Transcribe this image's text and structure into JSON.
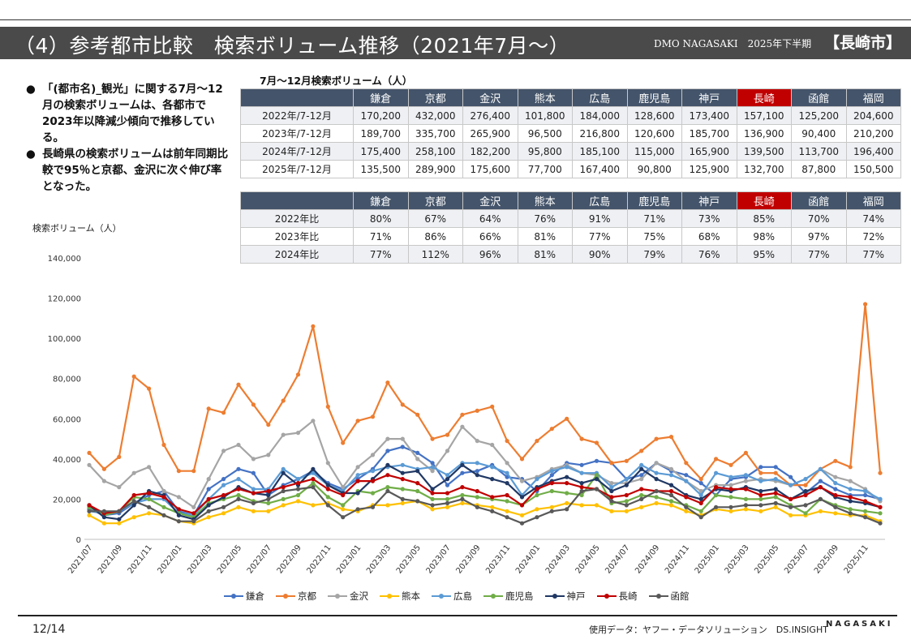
{
  "header": {
    "title": "（4）参考都市比較　検索ボリューム推移（2021年7月～）",
    "subtitle": "DMO NAGASAKI　2025年下半期",
    "city": "【長崎市】"
  },
  "bullets": [
    "「(都市名)_観光」に関する7月～12月の検索ボリュームは、各都市で2023年以降減少傾向で推移している。",
    "長崎県の検索ボリュームは前年同期比較で95％と京都、金沢に次ぐ伸び率となった。"
  ],
  "bullet_marker": "●",
  "volume_table": {
    "caption": "7月～12月検索ボリューム（人）",
    "columns": [
      "鎌倉",
      "京都",
      "金沢",
      "熊本",
      "広島",
      "鹿児島",
      "神戸",
      "長崎",
      "函館",
      "福岡"
    ],
    "highlight": "長崎",
    "rows": [
      {
        "label": "2022年/7-12月",
        "values": [
          "170,200",
          "432,000",
          "276,400",
          "101,800",
          "184,000",
          "128,600",
          "173,400",
          "157,100",
          "125,200",
          "204,600"
        ]
      },
      {
        "label": "2023年/7-12月",
        "values": [
          "189,700",
          "335,700",
          "265,900",
          "96,500",
          "216,800",
          "120,600",
          "185,700",
          "136,900",
          "90,400",
          "210,200"
        ]
      },
      {
        "label": "2024年/7-12月",
        "values": [
          "175,400",
          "258,100",
          "182,200",
          "95,800",
          "185,100",
          "115,000",
          "165,900",
          "139,500",
          "113,700",
          "196,400"
        ]
      },
      {
        "label": "2025年/7-12月",
        "values": [
          "135,500",
          "289,900",
          "175,600",
          "77,700",
          "167,400",
          "90,800",
          "125,900",
          "132,700",
          "87,800",
          "150,500"
        ]
      }
    ]
  },
  "ratio_table": {
    "columns": [
      "鎌倉",
      "京都",
      "金沢",
      "熊本",
      "広島",
      "鹿児島",
      "神戸",
      "長崎",
      "函館",
      "福岡"
    ],
    "highlight": "長崎",
    "rows": [
      {
        "label": "2022年比",
        "values": [
          "80%",
          "67%",
          "64%",
          "76%",
          "91%",
          "71%",
          "73%",
          "85%",
          "70%",
          "74%"
        ]
      },
      {
        "label": "2023年比",
        "values": [
          "71%",
          "86%",
          "66%",
          "81%",
          "77%",
          "75%",
          "68%",
          "98%",
          "97%",
          "72%"
        ]
      },
      {
        "label": "2024年比",
        "values": [
          "77%",
          "112%",
          "96%",
          "81%",
          "90%",
          "79%",
          "76%",
          "95%",
          "77%",
          "77%"
        ]
      }
    ]
  },
  "chart_data": {
    "type": "line",
    "title": "",
    "xlabel": "",
    "ylabel": "検索ボリューム（人）",
    "ylim": [
      0,
      140000
    ],
    "yticks": [
      "0",
      "20,000",
      "40,000",
      "60,000",
      "80,000",
      "100,000",
      "120,000",
      "140,000"
    ],
    "legend_position": "bottom",
    "grid": false,
    "categories": [
      "2021/07",
      "2021/08",
      "2021/09",
      "2021/10",
      "2021/11",
      "2021/12",
      "2022/01",
      "2022/02",
      "2022/03",
      "2022/04",
      "2022/05",
      "2022/06",
      "2022/07",
      "2022/08",
      "2022/09",
      "2022/10",
      "2022/11",
      "2022/12",
      "2023/01",
      "2023/02",
      "2023/03",
      "2023/04",
      "2023/05",
      "2023/06",
      "2023/07",
      "2023/08",
      "2023/09",
      "2023/10",
      "2023/11",
      "2023/12",
      "2024/01",
      "2024/02",
      "2024/03",
      "2024/04",
      "2024/05",
      "2024/06",
      "2024/07",
      "2024/08",
      "2024/09",
      "2024/10",
      "2024/11",
      "2024/12",
      "2025/01",
      "2025/02",
      "2025/03",
      "2025/04",
      "2025/05",
      "2025/06",
      "2025/07",
      "2025/08",
      "2025/09",
      "2025/10",
      "2025/11",
      "2025/12"
    ],
    "x_tick_labels": [
      "2021/07",
      "2021/09",
      "2021/11",
      "2022/01",
      "2022/03",
      "2022/05",
      "2022/07",
      "2022/09",
      "2022/11",
      "2023/01",
      "2023/03",
      "2023/05",
      "2023/07",
      "2023/09",
      "2023/11",
      "2024/01",
      "2024/03",
      "2024/05",
      "2024/07",
      "2024/09",
      "2024/11",
      "2025/01",
      "2025/03",
      "2025/05",
      "2025/07",
      "2025/09",
      "2025/11"
    ],
    "series": [
      {
        "name": "鎌倉",
        "color": "#4472c4",
        "values": [
          15000,
          12000,
          13000,
          18000,
          22000,
          24000,
          14000,
          12000,
          25000,
          30000,
          35000,
          33000,
          22000,
          27000,
          30000,
          34000,
          28000,
          25000,
          30000,
          35000,
          44000,
          46000,
          43000,
          38000,
          27000,
          33000,
          34000,
          37000,
          31000,
          30000,
          24000,
          32000,
          38000,
          37000,
          39000,
          38000,
          30000,
          32000,
          38000,
          34000,
          32000,
          28000,
          22000,
          30000,
          31000,
          36000,
          36000,
          31000,
          23000,
          29000,
          25000,
          22000,
          22000,
          20000
        ]
      },
      {
        "name": "京都",
        "color": "#ed7d31",
        "values": [
          43000,
          35000,
          41000,
          81000,
          75000,
          47000,
          34000,
          34000,
          65000,
          63000,
          77000,
          67000,
          57000,
          69000,
          82000,
          106000,
          66000,
          48000,
          59000,
          61000,
          78000,
          67000,
          62000,
          50000,
          52000,
          62000,
          64000,
          66000,
          49000,
          40000,
          49000,
          55000,
          60000,
          50000,
          48000,
          38000,
          39000,
          44000,
          50000,
          51000,
          38000,
          30000,
          40000,
          37000,
          43000,
          33000,
          33000,
          27000,
          27000,
          35000,
          39000,
          36000,
          117000,
          33000
        ]
      },
      {
        "name": "金沢",
        "color": "#a5a5a5",
        "values": [
          37000,
          29000,
          26000,
          33000,
          36000,
          24000,
          21000,
          16000,
          30000,
          44000,
          47000,
          40000,
          42000,
          52000,
          53000,
          59000,
          38000,
          26000,
          36000,
          42000,
          50000,
          50000,
          40000,
          34000,
          44000,
          56000,
          49000,
          47000,
          38000,
          29000,
          31000,
          35000,
          37000,
          33000,
          32000,
          28000,
          28000,
          30000,
          38000,
          35000,
          29000,
          24000,
          27000,
          27000,
          29000,
          30000,
          29000,
          27000,
          30000,
          35000,
          31000,
          29000,
          25000,
          19000
        ]
      },
      {
        "name": "熊本",
        "color": "#ffc000",
        "values": [
          12000,
          8000,
          8000,
          11000,
          13000,
          12000,
          9000,
          8000,
          11000,
          13000,
          16000,
          14000,
          14000,
          17000,
          19000,
          17000,
          18000,
          15000,
          14000,
          17000,
          17000,
          18000,
          19000,
          15000,
          16000,
          18000,
          17000,
          16000,
          14000,
          12000,
          15000,
          16000,
          18000,
          17000,
          17000,
          14000,
          14000,
          16000,
          18000,
          17000,
          14000,
          12000,
          15000,
          14000,
          15000,
          14000,
          16000,
          12000,
          12000,
          14000,
          13000,
          12000,
          12000,
          9000
        ]
      },
      {
        "name": "広島",
        "color": "#5b9bd5",
        "values": [
          14000,
          13000,
          14000,
          18000,
          20000,
          20000,
          13000,
          12000,
          20000,
          27000,
          30000,
          25000,
          25000,
          35000,
          30000,
          33000,
          27000,
          24000,
          32000,
          34000,
          36000,
          37000,
          35000,
          36000,
          32000,
          38000,
          38000,
          36000,
          33000,
          22000,
          30000,
          34000,
          36000,
          33000,
          33000,
          26000,
          30000,
          37000,
          33000,
          32000,
          29000,
          22000,
          33000,
          31000,
          32000,
          29000,
          30000,
          27000,
          30000,
          35000,
          28000,
          25000,
          24000,
          20000
        ]
      },
      {
        "name": "鹿児島",
        "color": "#70ad47",
        "values": [
          16000,
          12000,
          14000,
          21000,
          20000,
          16000,
          13000,
          11000,
          18000,
          20000,
          22000,
          19000,
          18000,
          20000,
          22000,
          28000,
          21000,
          17000,
          24000,
          23000,
          26000,
          25000,
          24000,
          20000,
          20000,
          22000,
          21000,
          20000,
          19000,
          17000,
          22000,
          24000,
          23000,
          22000,
          32000,
          18000,
          19000,
          22000,
          21000,
          19000,
          17000,
          14000,
          22000,
          21000,
          20000,
          20000,
          21000,
          17000,
          13000,
          20000,
          17000,
          15000,
          14000,
          13000
        ]
      },
      {
        "name": "神戸",
        "color": "#203864",
        "values": [
          17000,
          11000,
          10000,
          17000,
          24000,
          22000,
          12000,
          10000,
          17000,
          21000,
          26000,
          23000,
          22000,
          33000,
          27000,
          35000,
          27000,
          23000,
          23000,
          30000,
          37000,
          33000,
          34000,
          25000,
          30000,
          37000,
          32000,
          30000,
          28000,
          21000,
          26000,
          29000,
          31000,
          28000,
          30000,
          24000,
          27000,
          35000,
          30000,
          27000,
          22000,
          20000,
          25000,
          24000,
          26000,
          24000,
          25000,
          20000,
          24000,
          26000,
          21000,
          19000,
          18000,
          16000
        ]
      },
      {
        "name": "長崎",
        "color": "#c00000",
        "values": [
          17000,
          13000,
          14000,
          22000,
          23000,
          21000,
          15000,
          13000,
          20000,
          22000,
          25000,
          23000,
          24000,
          26000,
          28000,
          30000,
          25000,
          22000,
          29000,
          29000,
          32000,
          30000,
          28000,
          23000,
          23000,
          26000,
          24000,
          21000,
          22000,
          17000,
          25000,
          28000,
          28000,
          26000,
          25000,
          21000,
          22000,
          25000,
          24000,
          24000,
          21000,
          18000,
          26000,
          25000,
          25000,
          22000,
          23000,
          20000,
          22000,
          26000,
          22000,
          21000,
          19000,
          16000
        ]
      },
      {
        "name": "函館",
        "color": "#595959",
        "values": [
          14000,
          14000,
          14000,
          19000,
          16000,
          12000,
          9000,
          9000,
          14000,
          16000,
          20000,
          18000,
          20000,
          24000,
          25000,
          26000,
          17000,
          11000,
          15000,
          16000,
          24000,
          20000,
          19000,
          17000,
          18000,
          20000,
          16000,
          14000,
          11000,
          8000,
          11000,
          14000,
          15000,
          24000,
          25000,
          19000,
          17000,
          20000,
          24000,
          22000,
          16000,
          11000,
          16000,
          16000,
          17000,
          17000,
          18000,
          16000,
          17000,
          20000,
          16000,
          13000,
          11000,
          8000
        ]
      }
    ]
  },
  "footer": {
    "page": "12/14",
    "source": "使用データ：ヤフー・データソリューション　DS.INSIGHT",
    "logo": "NAGASAKI"
  }
}
